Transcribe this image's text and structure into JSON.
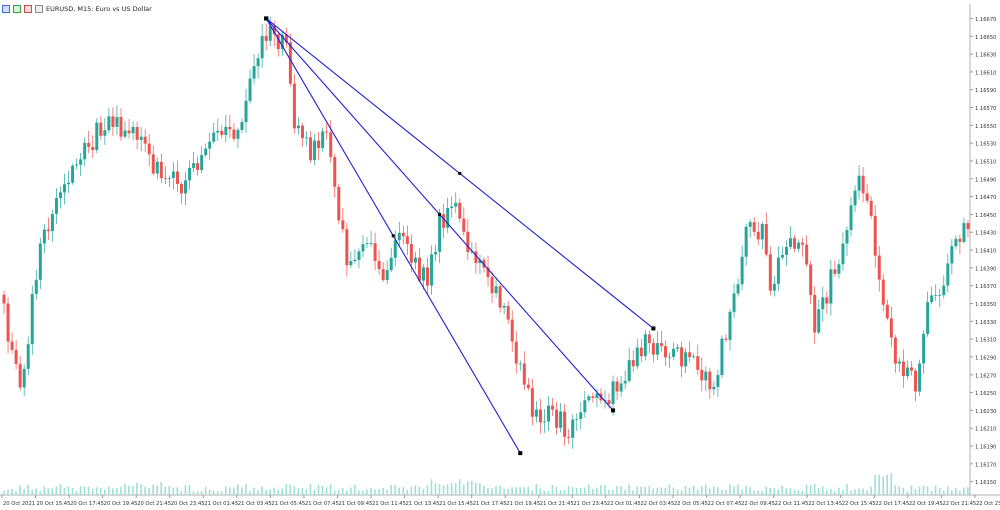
{
  "header": {
    "symbol_line": "EURUSD, M15:  Euro vs US Dollar",
    "icons": [
      "chart-tool-icon",
      "bar-icon",
      "trade-icon",
      "settings-icon"
    ]
  },
  "colors": {
    "bull": "#26a69a",
    "bear": "#ef5350",
    "volume": "#9fe0d2",
    "trendline": "#1f1fd0",
    "grid": "#f0f0f0",
    "axis_text": "#333333"
  },
  "chart_data": {
    "type": "candlestick",
    "grid": false,
    "ylim": [
      1.16135,
      1.16675
    ],
    "y_ticks": [
      "1.16670",
      "1.16650",
      "1.16630",
      "1.16610",
      "1.16590",
      "1.16570",
      "1.16550",
      "1.16530",
      "1.16510",
      "1.16490",
      "1.16470",
      "1.16450",
      "1.16430",
      "1.16410",
      "1.16390",
      "1.16370",
      "1.16350",
      "1.16330",
      "1.16310",
      "1.16290",
      "1.16270",
      "1.16250",
      "1.16230",
      "1.16210",
      "1.16190",
      "1.16170",
      "1.16150"
    ],
    "x_ticks": [
      "20 Oct 2021",
      "20 Oct 15:45",
      "20 Oct 17:45",
      "20 Oct 19:45",
      "20 Oct 21:45",
      "20 Oct 23:45",
      "21 Oct 01:45",
      "21 Oct 03:45",
      "21 Oct 05:45",
      "21 Oct 07:45",
      "21 Oct 09:45",
      "21 Oct 11:45",
      "21 Oct 13:45",
      "21 Oct 15:45",
      "21 Oct 17:45",
      "21 Oct 19:45",
      "21 Oct 21:45",
      "21 Oct 23:45",
      "22 Oct 01:45",
      "22 Oct 03:45",
      "22 Oct 05:45",
      "22 Oct 07:45",
      "22 Oct 09:45",
      "22 Oct 11:45",
      "22 Oct 13:45",
      "22 Oct 15:45",
      "22 Oct 17:45",
      "22 Oct 19:45",
      "22 Oct 21:45",
      "22 Oct 23:45"
    ],
    "anchors": [
      {
        "i": 0,
        "v": 1.16345
      },
      {
        "i": 4,
        "v": 1.1625
      },
      {
        "i": 9,
        "v": 1.1642
      },
      {
        "i": 14,
        "v": 1.1647
      },
      {
        "i": 24,
        "v": 1.1655
      },
      {
        "i": 32,
        "v": 1.1655
      },
      {
        "i": 38,
        "v": 1.165
      },
      {
        "i": 44,
        "v": 1.1648
      },
      {
        "i": 50,
        "v": 1.1653
      },
      {
        "i": 54,
        "v": 1.1654
      },
      {
        "i": 58,
        "v": 1.1654
      },
      {
        "i": 62,
        "v": 1.1662
      },
      {
        "i": 65,
        "v": 1.1665
      },
      {
        "i": 70,
        "v": 1.1664
      },
      {
        "i": 72,
        "v": 1.1656
      },
      {
        "i": 76,
        "v": 1.1651
      },
      {
        "i": 80,
        "v": 1.1655
      },
      {
        "i": 83,
        "v": 1.1644
      },
      {
        "i": 86,
        "v": 1.1639
      },
      {
        "i": 90,
        "v": 1.1641
      },
      {
        "i": 94,
        "v": 1.1639
      },
      {
        "i": 98,
        "v": 1.1642
      },
      {
        "i": 102,
        "v": 1.1639
      },
      {
        "i": 105,
        "v": 1.1637
      },
      {
        "i": 108,
        "v": 1.1644
      },
      {
        "i": 112,
        "v": 1.1647
      },
      {
        "i": 116,
        "v": 1.164
      },
      {
        "i": 120,
        "v": 1.1638
      },
      {
        "i": 124,
        "v": 1.1635
      },
      {
        "i": 128,
        "v": 1.1627
      },
      {
        "i": 131,
        "v": 1.1623
      },
      {
        "i": 136,
        "v": 1.1622
      },
      {
        "i": 140,
        "v": 1.1621
      },
      {
        "i": 144,
        "v": 1.1624
      },
      {
        "i": 148,
        "v": 1.1624
      },
      {
        "i": 152,
        "v": 1.1626
      },
      {
        "i": 156,
        "v": 1.1628
      },
      {
        "i": 160,
        "v": 1.1631
      },
      {
        "i": 164,
        "v": 1.1629
      },
      {
        "i": 168,
        "v": 1.1629
      },
      {
        "i": 172,
        "v": 1.1628
      },
      {
        "i": 176,
        "v": 1.1626
      },
      {
        "i": 180,
        "v": 1.1634
      },
      {
        "i": 184,
        "v": 1.1643
      },
      {
        "i": 188,
        "v": 1.1643
      },
      {
        "i": 190,
        "v": 1.1637
      },
      {
        "i": 194,
        "v": 1.1642
      },
      {
        "i": 198,
        "v": 1.1643
      },
      {
        "i": 201,
        "v": 1.1633
      },
      {
        "i": 204,
        "v": 1.1636
      },
      {
        "i": 208,
        "v": 1.1642
      },
      {
        "i": 212,
        "v": 1.1648
      },
      {
        "i": 215,
        "v": 1.1644
      },
      {
        "i": 218,
        "v": 1.1634
      },
      {
        "i": 220,
        "v": 1.163
      },
      {
        "i": 223,
        "v": 1.1628
      },
      {
        "i": 226,
        "v": 1.1626
      },
      {
        "i": 229,
        "v": 1.1634
      },
      {
        "i": 233,
        "v": 1.1638
      },
      {
        "i": 236,
        "v": 1.1643
      },
      {
        "i": 239,
        "v": 1.1643
      }
    ],
    "volume_peak_index": 218,
    "trendlines": [
      {
        "from": {
          "i": 65,
          "v": 1.1667
        },
        "to": {
          "i": 161,
          "v": 1.16322
        }
      },
      {
        "from": {
          "i": 65,
          "v": 1.1667
        },
        "to": {
          "i": 151,
          "v": 1.1623
        }
      },
      {
        "from": {
          "i": 65,
          "v": 1.1667
        },
        "to": {
          "i": 128,
          "v": 1.16182
        }
      }
    ]
  }
}
